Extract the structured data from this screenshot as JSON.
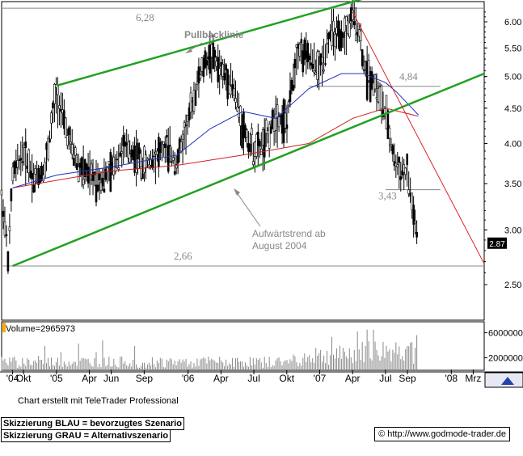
{
  "chart_data": {
    "type": "candlestick",
    "title": "",
    "price_axis": {
      "scale": "log",
      "ylim": [
        2.2,
        6.5
      ],
      "ticks": [
        2.5,
        3.0,
        3.5,
        4.0,
        4.5,
        5.0,
        5.5,
        6.0
      ],
      "tick_labels": [
        "2.50",
        "3.00",
        "3.50",
        "4.00",
        "4.50",
        "5.00",
        "5.50",
        "6.00"
      ]
    },
    "x_axis": {
      "start": "2004-08",
      "end": "2008-04",
      "ticks": [
        {
          "date": "2004-09",
          "label": "'04"
        },
        {
          "date": "2004-10",
          "label": "Okt"
        },
        {
          "date": "2005-01",
          "label": "'05"
        },
        {
          "date": "2005-04",
          "label": "Apr"
        },
        {
          "date": "2005-06",
          "label": "Jun"
        },
        {
          "date": "2005-09",
          "label": "Sep"
        },
        {
          "date": "2006-01",
          "label": "'06"
        },
        {
          "date": "2006-04",
          "label": "Apr"
        },
        {
          "date": "2006-07",
          "label": "Jul"
        },
        {
          "date": "2006-10",
          "label": "Okt"
        },
        {
          "date": "2007-01",
          "label": "'07"
        },
        {
          "date": "2007-04",
          "label": "Apr"
        },
        {
          "date": "2007-07",
          "label": "Jul"
        },
        {
          "date": "2007-09",
          "label": "Sep"
        },
        {
          "date": "2008-01",
          "label": "'08"
        },
        {
          "date": "2008-03",
          "label": "Mrz"
        }
      ]
    },
    "price_series": [
      {
        "date": "2004-08",
        "close": 3.4
      },
      {
        "date": "2004-08-20",
        "close": 2.7
      },
      {
        "date": "2004-09",
        "close": 3.6
      },
      {
        "date": "2004-10",
        "close": 3.9
      },
      {
        "date": "2004-11",
        "close": 3.55
      },
      {
        "date": "2004-12",
        "close": 3.7
      },
      {
        "date": "2005-01",
        "close": 4.75
      },
      {
        "date": "2005-02",
        "close": 4.1
      },
      {
        "date": "2005-03",
        "close": 3.7
      },
      {
        "date": "2005-04",
        "close": 3.6
      },
      {
        "date": "2005-05",
        "close": 3.55
      },
      {
        "date": "2005-06",
        "close": 3.65
      },
      {
        "date": "2005-07",
        "close": 3.95
      },
      {
        "date": "2005-08",
        "close": 3.9
      },
      {
        "date": "2005-09",
        "close": 3.7
      },
      {
        "date": "2005-10",
        "close": 3.85
      },
      {
        "date": "2005-11",
        "close": 3.95
      },
      {
        "date": "2005-12",
        "close": 3.75
      },
      {
        "date": "2006-01",
        "close": 4.3
      },
      {
        "date": "2006-02",
        "close": 5.0
      },
      {
        "date": "2006-03",
        "close": 5.4
      },
      {
        "date": "2006-04",
        "close": 5.1
      },
      {
        "date": "2006-05",
        "close": 4.9
      },
      {
        "date": "2006-06",
        "close": 4.2
      },
      {
        "date": "2006-07",
        "close": 3.9
      },
      {
        "date": "2006-08",
        "close": 4.0
      },
      {
        "date": "2006-09",
        "close": 4.4
      },
      {
        "date": "2006-10",
        "close": 4.3
      },
      {
        "date": "2006-11",
        "close": 5.5
      },
      {
        "date": "2006-12",
        "close": 5.3
      },
      {
        "date": "2007-01",
        "close": 5.1
      },
      {
        "date": "2007-02",
        "close": 5.8
      },
      {
        "date": "2007-03",
        "close": 5.6
      },
      {
        "date": "2007-04",
        "close": 6.1
      },
      {
        "date": "2007-04-20",
        "close": 5.8
      },
      {
        "date": "2007-05",
        "close": 5.2
      },
      {
        "date": "2007-06",
        "close": 4.9
      },
      {
        "date": "2007-07",
        "close": 4.4
      },
      {
        "date": "2007-07-20",
        "close": 3.9
      },
      {
        "date": "2007-08",
        "close": 3.7
      },
      {
        "date": "2007-09",
        "close": 3.6
      },
      {
        "date": "2007-09-20",
        "close": 3.1
      },
      {
        "date": "2007-10",
        "close": 2.87
      }
    ],
    "moving_average_blue": [
      {
        "date": "2004-09",
        "value": 3.45
      },
      {
        "date": "2005-01",
        "value": 3.6
      },
      {
        "date": "2005-06",
        "value": 3.7
      },
      {
        "date": "2005-12",
        "value": 3.85
      },
      {
        "date": "2006-03",
        "value": 4.2
      },
      {
        "date": "2006-06",
        "value": 4.45
      },
      {
        "date": "2006-09",
        "value": 4.35
      },
      {
        "date": "2006-12",
        "value": 4.8
      },
      {
        "date": "2007-03",
        "value": 5.05
      },
      {
        "date": "2007-05",
        "value": 5.05
      },
      {
        "date": "2007-07",
        "value": 4.9
      },
      {
        "date": "2007-08",
        "value": 4.75
      },
      {
        "date": "2007-10",
        "value": 4.4
      }
    ],
    "moving_average_red": [
      {
        "date": "2004-09",
        "value": 3.45
      },
      {
        "date": "2005-06",
        "value": 3.65
      },
      {
        "date": "2005-12",
        "value": 3.72
      },
      {
        "date": "2006-06",
        "value": 3.85
      },
      {
        "date": "2006-12",
        "value": 4.0
      },
      {
        "date": "2007-04",
        "value": 4.35
      },
      {
        "date": "2007-07",
        "value": 4.5
      },
      {
        "date": "2007-10",
        "value": 4.38
      }
    ],
    "trendlines": [
      {
        "name": "upper_channel",
        "color": "#22a022",
        "from": {
          "date": "2005-01",
          "value": 4.85
        },
        "to": {
          "date": "2007-06",
          "value": 6.55
        }
      },
      {
        "name": "lower_trend",
        "color": "#22a022",
        "from": {
          "date": "2004-09",
          "value": 2.66
        },
        "to": {
          "date": "2008-04",
          "value": 5.05
        }
      },
      {
        "name": "downtrend",
        "color": "#dd2222",
        "from": {
          "date": "2007-04",
          "value": 6.2
        },
        "to": {
          "date": "2008-04",
          "value": 2.68
        }
      }
    ],
    "horizontal_levels": [
      {
        "value": 6.28,
        "label": "6,28",
        "from": "2004-08",
        "to": "2008-04"
      },
      {
        "value": 4.84,
        "label": "4,84",
        "from": "2006-12",
        "to": "2007-12"
      },
      {
        "value": 3.43,
        "label": "3,43",
        "from": "2007-07",
        "to": "2007-12"
      },
      {
        "value": 2.66,
        "label": "2,66",
        "from": "2004-08",
        "to": "2008-04"
      }
    ],
    "annotations": [
      {
        "text": "Pullbacklinie",
        "color": "#888888"
      },
      {
        "text": "Aufwärtstrend ab",
        "color": "#888888"
      },
      {
        "text": "August 2004",
        "color": "#888888"
      }
    ],
    "last_price_label": "2.87",
    "volume": {
      "label": "Volume=2965973",
      "ticks": [
        6000000,
        2000000
      ],
      "tick_labels": [
        "6000000",
        "2000000"
      ],
      "ylim": [
        0,
        7500000
      ]
    },
    "colors": {
      "candles": "#000000",
      "ma_blue": "#2233bb",
      "ma_red": "#cc2222",
      "channel": "#22a022",
      "downtrend": "#dd2222",
      "levels": "#888888",
      "annotation": "#888888"
    }
  },
  "footer": {
    "credit": "Chart erstellt mit TeleTrader Professional",
    "legend_blue": "Skizzierung BLAU = bevorzugtes Szenario",
    "legend_grey": "Skizzierung GRAU = Alternativszenario",
    "source": "© http://www.godmode-trader.de"
  }
}
